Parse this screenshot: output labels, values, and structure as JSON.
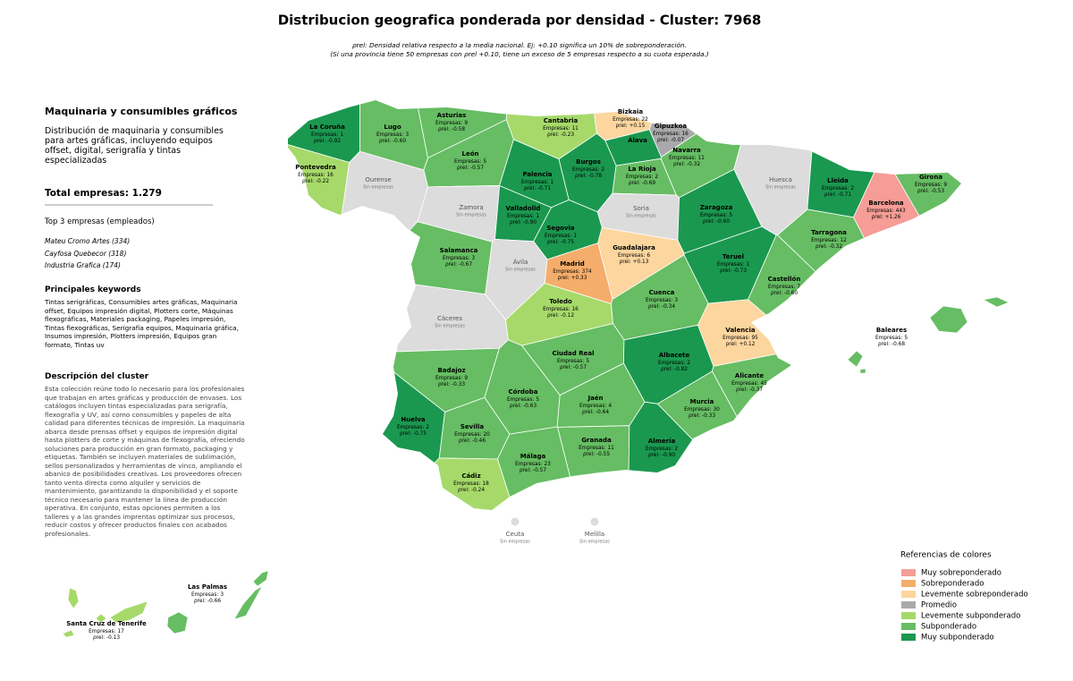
{
  "header": {
    "title": "Distribucion geografica ponderada por densidad - Cluster: 7968",
    "subtitle_lines": [
      "ρrel: Densidad relativa respecto a la media nacional. Ej: +0.10 significa un 10% de sobreponderación.",
      "(Si una provincia tiene 50 empresas con ρrel +0.10, tiene un exceso de 5 empresas respecto a su cuota esperada.)"
    ]
  },
  "sidebar": {
    "title": "Maquinaria y consumibles gráficos",
    "summary": "Distribución de maquinaria y consumibles para artes gráficas, incluyendo equipos offset, digital, serigrafía y tintas especializadas",
    "total": {
      "label": "Total empresas:",
      "value": "1.279"
    },
    "top_title": "Top 3 empresas (empleados)",
    "top": [
      "Mateu Cromo Artes (334)",
      "Cayfosa Quebecor (318)",
      "Industria Grafica (174)"
    ],
    "keywords_title": "Principales keywords",
    "keywords": "Tintas serigráficas, Consumibles artes gráficas, Maquinaria offset, Equipos impresión digital, Plotters corte, Máquinas flexográficas, Materiales packaging, Papeles impresión, Tintas flexográficas, Serigrafía equipos, Maquinaria gráfica, Insumos impresión, Plotters impresión, Equipos gran formato, Tintas uv",
    "description_title": "Descripción del cluster",
    "description": "Esta colección reúne todo lo necesario para los profesionales que trabajan en artes gráficas y producción de envases. Los catálogos incluyen tintas especializadas para serigrafía, flexografía y UV, así como consumibles y papeles de alta calidad para diferentes técnicas de impresión. La maquinaria abarca desde prensas offset y equipos de impresión digital hasta plotters de corte y máquinas de flexografía, ofreciendo soluciones para producción en gran formato, packaging y etiquetas. También se incluyen materiales de sublimación, sellos personalizados y herramientas de vinco, ampliando el abanico de posibilidades creativas. Los proveedores ofrecen tanto venta directa como alquiler y servicios de mantenimiento, garantizando la disponibilidad y el soporte técnico necesario para mantener la línea de producción operativa. En conjunto, estas opciones permiten a los talleres y a las grandes imprentas optimizar sus procesos, reducir costos y ofrecer productos finales con acabados profesionales."
  },
  "map": {
    "stat_labels": {
      "empresas": "Empresas:",
      "rho": "ρrel:"
    },
    "no_data_label": "Sin empresas",
    "no_data_color": "#dcdcdc",
    "provinces": [
      {
        "name": "La Coruña",
        "empresas": 1,
        "rho": "-0.92",
        "level": 6
      },
      {
        "name": "Lugo",
        "empresas": 3,
        "rho": "-0.60",
        "level": 5
      },
      {
        "name": "Asturias",
        "empresas": 9,
        "rho": "-0.58",
        "level": 5
      },
      {
        "name": "Cantabria",
        "empresas": 11,
        "rho": "-0.23",
        "level": 4
      },
      {
        "name": "Bizkaia",
        "empresas": 22,
        "rho": "+0.15",
        "level": 2
      },
      {
        "name": "Gipuzkoa",
        "empresas": 16,
        "rho": "-0.07",
        "level": 3
      },
      {
        "name": "Álava",
        "level": 6
      },
      {
        "name": "Navarra",
        "empresas": 11,
        "rho": "-0.32",
        "level": 5
      },
      {
        "name": "León",
        "empresas": 5,
        "rho": "-0.57",
        "level": 5
      },
      {
        "name": "Pontevedra",
        "empresas": 16,
        "rho": "-0.22",
        "level": 4
      },
      {
        "name": "Ourense"
      },
      {
        "name": "Palencia",
        "empresas": 1,
        "rho": "-0.71",
        "level": 6
      },
      {
        "name": "Burgos",
        "empresas": 2,
        "rho": "-0.78",
        "level": 6
      },
      {
        "name": "La Rioja",
        "empresas": 2,
        "rho": "-0.69",
        "level": 5
      },
      {
        "name": "Huesca"
      },
      {
        "name": "Lleida",
        "empresas": 2,
        "rho": "-0.71",
        "level": 6
      },
      {
        "name": "Girona",
        "empresas": 9,
        "rho": "-0.53",
        "level": 5
      },
      {
        "name": "Barcelona",
        "empresas": 443,
        "rho": "+1.26",
        "level": 0
      },
      {
        "name": "Zamora"
      },
      {
        "name": "Valladolid",
        "empresas": 1,
        "rho": "-0.90",
        "level": 6
      },
      {
        "name": "Soria"
      },
      {
        "name": "Zaragoza",
        "empresas": 5,
        "rho": "-0.60",
        "level": 6
      },
      {
        "name": "Tarragona",
        "empresas": 12,
        "rho": "-0.32",
        "level": 5
      },
      {
        "name": "Segovia",
        "empresas": 1,
        "rho": "-0.75",
        "level": 6
      },
      {
        "name": "Salamanca",
        "empresas": 3,
        "rho": "-0.67",
        "level": 5
      },
      {
        "name": "Ávila"
      },
      {
        "name": "Guadalajara",
        "empresas": 6,
        "rho": "+0.13",
        "level": 2
      },
      {
        "name": "Madrid",
        "empresas": 374,
        "rho": "+0.33",
        "level": 1
      },
      {
        "name": "Teruel",
        "empresas": 1,
        "rho": "-0.73",
        "level": 6
      },
      {
        "name": "Castellón",
        "empresas": 7,
        "rho": "-0.60",
        "level": 5
      },
      {
        "name": "Cuenca",
        "empresas": 3,
        "rho": "-0.34",
        "level": 5
      },
      {
        "name": "Cáceres"
      },
      {
        "name": "Toledo",
        "empresas": 16,
        "rho": "-0.12",
        "level": 4
      },
      {
        "name": "Valencia",
        "empresas": 95,
        "rho": "+0.12",
        "level": 2
      },
      {
        "name": "Ciudad Real",
        "empresas": 5,
        "rho": "-0.57",
        "level": 5
      },
      {
        "name": "Albacete",
        "empresas": 2,
        "rho": "-0.82",
        "level": 6
      },
      {
        "name": "Badajoz",
        "empresas": 9,
        "rho": "-0.33",
        "level": 5
      },
      {
        "name": "Alicante",
        "empresas": 45,
        "rho": "-0.37",
        "level": 5
      },
      {
        "name": "Córdoba",
        "empresas": 5,
        "rho": "-0.63",
        "level": 5
      },
      {
        "name": "Jaén",
        "empresas": 4,
        "rho": "-0.64",
        "level": 5
      },
      {
        "name": "Murcia",
        "empresas": 30,
        "rho": "-0.33",
        "level": 5
      },
      {
        "name": "Huelva",
        "empresas": 2,
        "rho": "-0.75",
        "level": 6
      },
      {
        "name": "Sevilla",
        "empresas": 20,
        "rho": "-0.46",
        "level": 5
      },
      {
        "name": "Granada",
        "empresas": 11,
        "rho": "-0.55",
        "level": 5
      },
      {
        "name": "Almería",
        "empresas": 2,
        "rho": "-0.90",
        "level": 6
      },
      {
        "name": "Málaga",
        "empresas": 23,
        "rho": "-0.57",
        "level": 5
      },
      {
        "name": "Cádiz",
        "empresas": 18,
        "rho": "-0.24",
        "level": 4
      },
      {
        "name": "Baleares",
        "empresas": 5,
        "rho": "-0.68",
        "level": 5
      },
      {
        "name": "Ceuta"
      },
      {
        "name": "Melilla"
      },
      {
        "name": "Las Palmas",
        "empresas": 3,
        "rho": "-0.66",
        "level": 5
      },
      {
        "name": "Santa Cruz de Tenerife",
        "empresas": 17,
        "rho": "-0.13",
        "level": 4
      }
    ]
  },
  "legend": {
    "title": "Referencias de colores",
    "items": [
      {
        "name": "Muy sobreponderado",
        "color": "#f59d96"
      },
      {
        "name": "Sobreponderado",
        "color": "#f5ad6b"
      },
      {
        "name": "Levemente sobreponderado",
        "color": "#fcd69e"
      },
      {
        "name": "Promedio",
        "color": "#a9a9ab"
      },
      {
        "name": "Levemente subponderado",
        "color": "#a6d96a"
      },
      {
        "name": "Subponderado",
        "color": "#66bd63"
      },
      {
        "name": "Muy subponderado",
        "color": "#1a9850"
      }
    ]
  }
}
